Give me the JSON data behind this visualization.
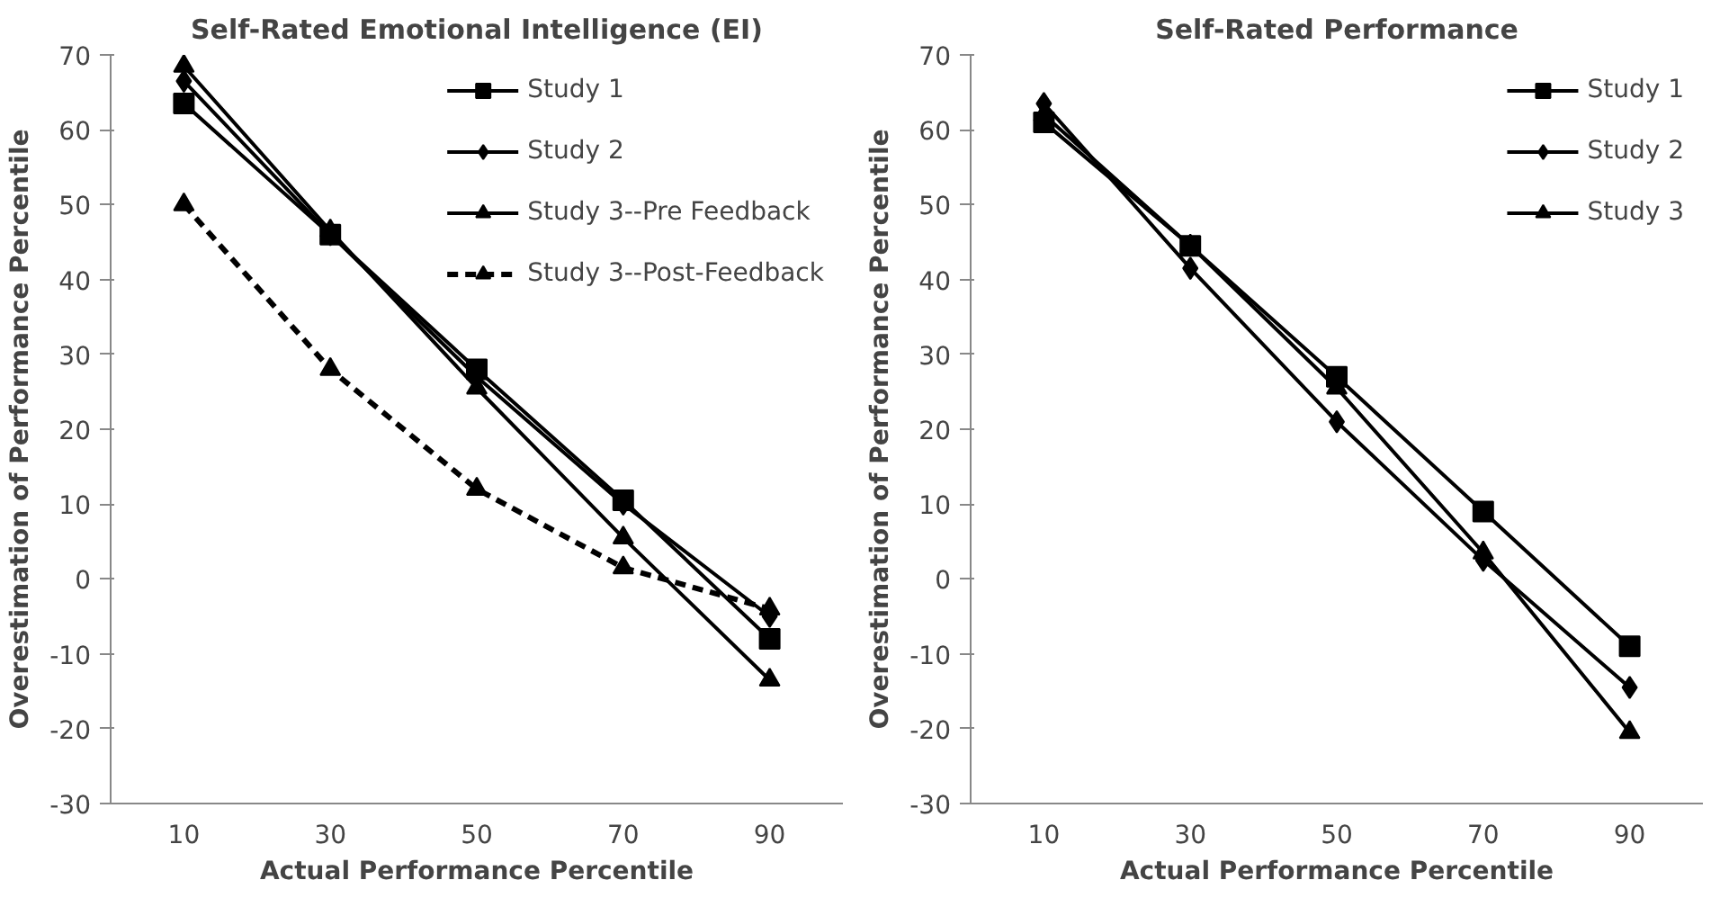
{
  "chart_data": [
    {
      "type": "line",
      "title": "Self-Rated Emotional Intelligence (EI)",
      "xlabel": "Actual Performance Percentile",
      "ylabel": "Overestimation of Performance Percentile",
      "categories": [
        "10",
        "30",
        "50",
        "70",
        "90"
      ],
      "ylim": [
        -30,
        70
      ],
      "yticks": [
        -30,
        -20,
        -10,
        0,
        10,
        20,
        30,
        40,
        50,
        60,
        70
      ],
      "grid": false,
      "legend": "top right",
      "series": [
        {
          "name": "Study 1",
          "color": "#000000",
          "marker": "square",
          "line_style": "solid",
          "values": [
            63.5,
            46,
            28,
            10.5,
            -8
          ]
        },
        {
          "name": "Study 2",
          "color": "#000000",
          "marker": "diamond",
          "line_style": "solid",
          "values": [
            66.5,
            46,
            27,
            10,
            -5
          ]
        },
        {
          "name": "Study 3--Pre Feedback",
          "color": "#000000",
          "marker": "triangle",
          "line_style": "solid",
          "values": [
            68.5,
            46.5,
            25.5,
            5.5,
            -13.5
          ]
        },
        {
          "name": "Study 3--Post-Feedback",
          "color": "#000000",
          "marker": "triangle",
          "line_style": "dashed",
          "values": [
            50,
            28,
            12,
            1.5,
            -4
          ]
        }
      ]
    },
    {
      "type": "line",
      "title": "Self-Rated Performance",
      "xlabel": "Actual Performance Percentile",
      "ylabel": "Overestimation of Performance Percentile",
      "categories": [
        "10",
        "30",
        "50",
        "70",
        "90"
      ],
      "ylim": [
        -30,
        70
      ],
      "yticks": [
        -30,
        -20,
        -10,
        0,
        10,
        20,
        30,
        40,
        50,
        60,
        70
      ],
      "grid": false,
      "legend": "top right",
      "series": [
        {
          "name": "Study 1",
          "color": "#000000",
          "marker": "square",
          "line_style": "solid",
          "values": [
            61,
            44.5,
            27,
            9,
            -9
          ]
        },
        {
          "name": "Study 2",
          "color": "#000000",
          "marker": "diamond",
          "line_style": "solid",
          "values": [
            63.5,
            41.5,
            21,
            2.5,
            -14.5
          ]
        },
        {
          "name": "Study 3",
          "color": "#000000",
          "marker": "triangle",
          "line_style": "solid",
          "values": [
            62,
            44.5,
            25.5,
            3.5,
            -20.5
          ]
        }
      ]
    }
  ]
}
